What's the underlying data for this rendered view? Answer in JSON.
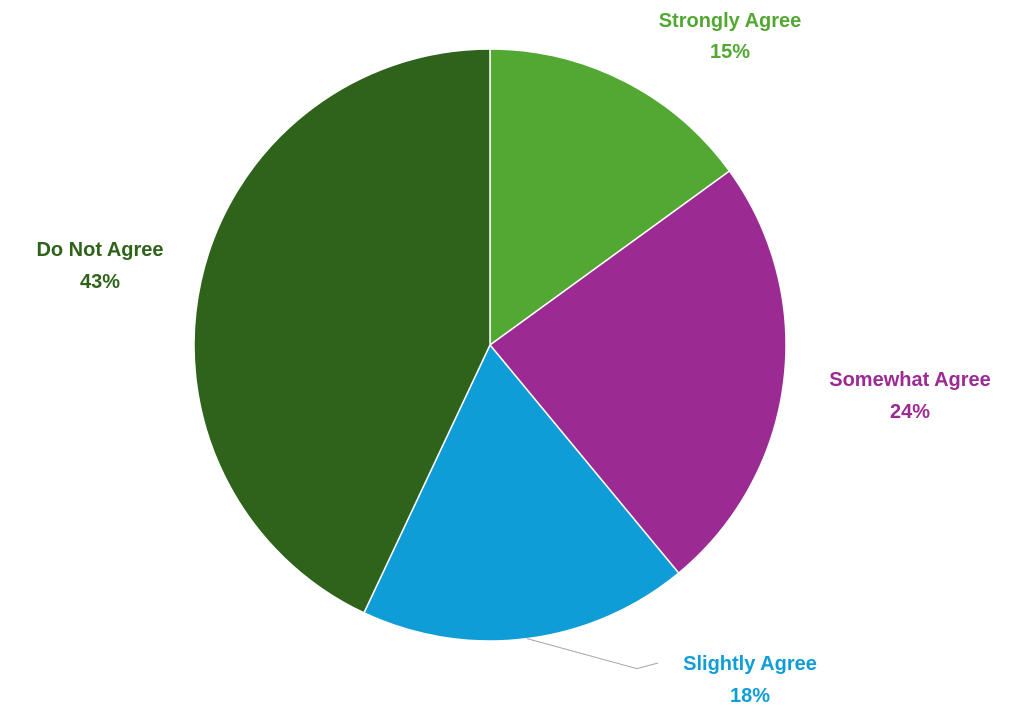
{
  "chart_data": {
    "type": "pie",
    "title": "",
    "slices": [
      {
        "label": "Strongly Agree",
        "value": 15,
        "value_label": "15%",
        "color": "#52a832",
        "label_color": "#52a832"
      },
      {
        "label": "Somewhat Agree",
        "value": 24,
        "value_label": "24%",
        "color": "#9c2a93",
        "label_color": "#9c2a93"
      },
      {
        "label": "Slightly Agree",
        "value": 18,
        "value_label": "18%",
        "color": "#0f9dd8",
        "label_color": "#0f9dd8"
      },
      {
        "label": "Do Not Agree",
        "value": 43,
        "value_label": "43%",
        "color": "#2f631c",
        "label_color": "#2f631c"
      }
    ],
    "start_angle": "12 o'clock",
    "direction": "clockwise",
    "legend": "none",
    "label_position": "outside"
  }
}
